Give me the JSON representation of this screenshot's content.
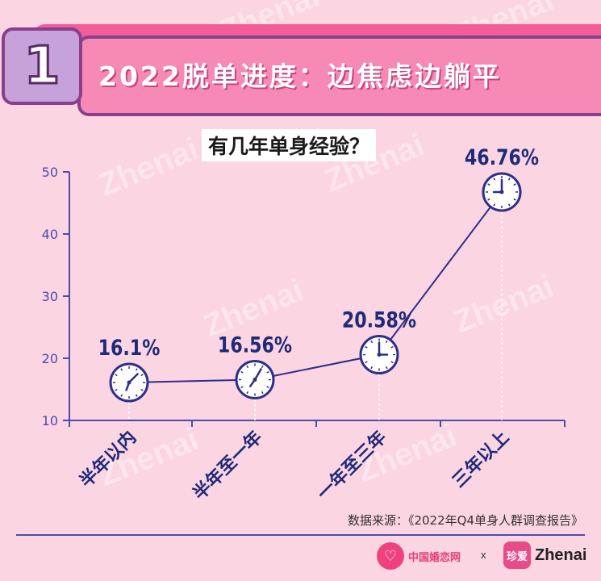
{
  "section": {
    "number": "1",
    "title": "2022脱单进度：边焦虑边躺平"
  },
  "watermark": "Zhenai",
  "chart_data": {
    "type": "line",
    "title": "有几年单身经验？",
    "categories": [
      "半年以内",
      "半年至一年",
      "一年至三年",
      "三年以上"
    ],
    "values": [
      16.1,
      16.56,
      20.58,
      46.76
    ],
    "value_labels": [
      "16.1%",
      "16.56%",
      "20.58%",
      "46.76%"
    ],
    "yticks": [
      10,
      20,
      30,
      40,
      50
    ],
    "ylim": [
      10,
      50
    ],
    "xlabel": "",
    "ylabel": "",
    "grid": false,
    "marker": "clock-icon",
    "colors": {
      "line": "#2e2e8c",
      "marker_fill": "#ffffff",
      "axis": "#4b4bb0",
      "label": "#1f2a7a"
    }
  },
  "source": "数据来源：《2022年Q4单身人群调查报告》",
  "footer": {
    "logo1_text": "中国婚恋网",
    "separator": "x",
    "logo2_badge": "珍爱",
    "logo2_text": "Zhenai"
  },
  "colors": {
    "background": "#fbd5e1",
    "banner_pink": "#f78ab4",
    "banner_purple": "#8a3f8c"
  }
}
